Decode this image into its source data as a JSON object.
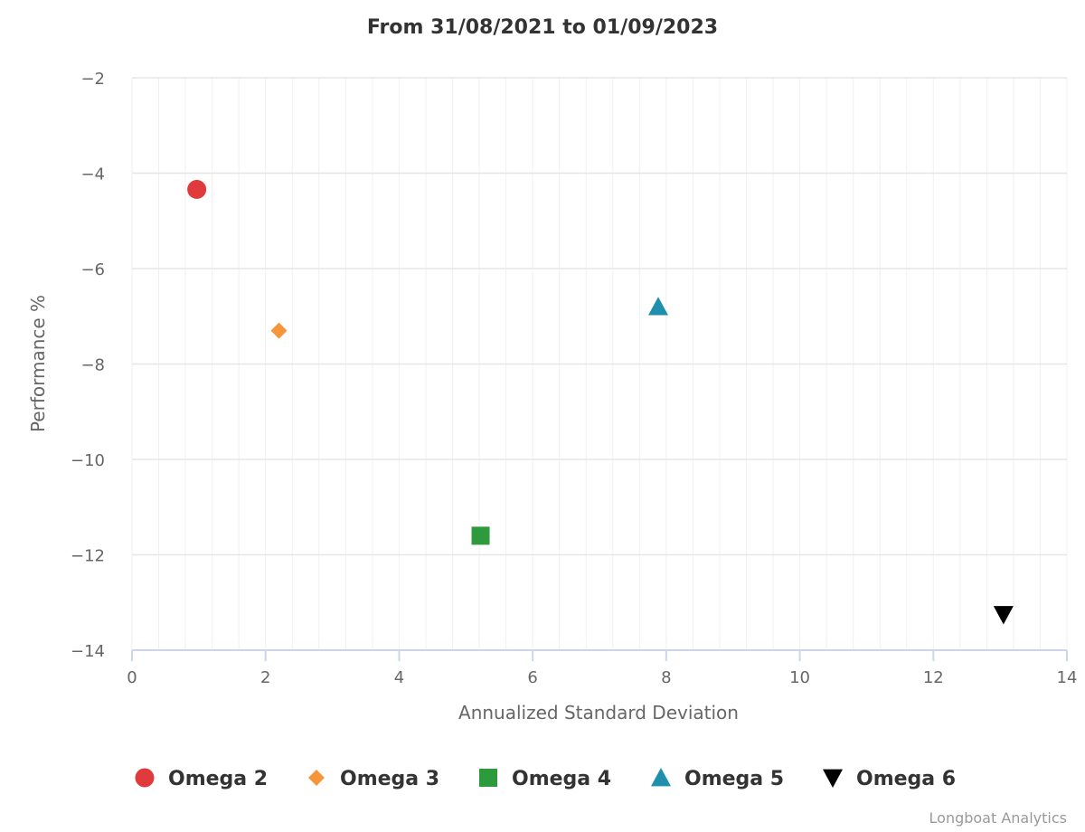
{
  "chart_data": {
    "type": "scatter",
    "title": "From 31/08/2021 to 01/09/2023",
    "xlabel": "Annualized Standard Deviation",
    "ylabel": "Performance %",
    "xlim": [
      0,
      14
    ],
    "ylim": [
      -14,
      -2
    ],
    "x_ticks": [
      0,
      2,
      4,
      6,
      8,
      10,
      12,
      14
    ],
    "y_ticks": [
      -2,
      -4,
      -6,
      -8,
      -10,
      -12,
      -14
    ],
    "x_tick_labels": [
      "0",
      "2",
      "4",
      "6",
      "8",
      "10",
      "12",
      "14"
    ],
    "y_tick_labels": [
      "−2",
      "−4",
      "−6",
      "−8",
      "−10",
      "−12",
      "−14"
    ],
    "x_minor_step": 0.4,
    "grid": true,
    "legend_position": "bottom",
    "series": [
      {
        "name": "Omega 2",
        "marker": "circle",
        "color": "#e03a3c",
        "x": 0.97,
        "y": -4.34
      },
      {
        "name": "Omega 3",
        "marker": "diamond",
        "color": "#f7953b",
        "x": 2.2,
        "y": -7.3
      },
      {
        "name": "Omega 4",
        "marker": "square",
        "color": "#2e9a3e",
        "x": 5.22,
        "y": -11.6
      },
      {
        "name": "Omega 5",
        "marker": "triangle",
        "color": "#1f8fae",
        "x": 7.88,
        "y": -6.8
      },
      {
        "name": "Omega 6",
        "marker": "triangle-down",
        "color": "#000000",
        "x": 13.05,
        "y": -13.25
      }
    ]
  },
  "credit": "Longboat Analytics"
}
